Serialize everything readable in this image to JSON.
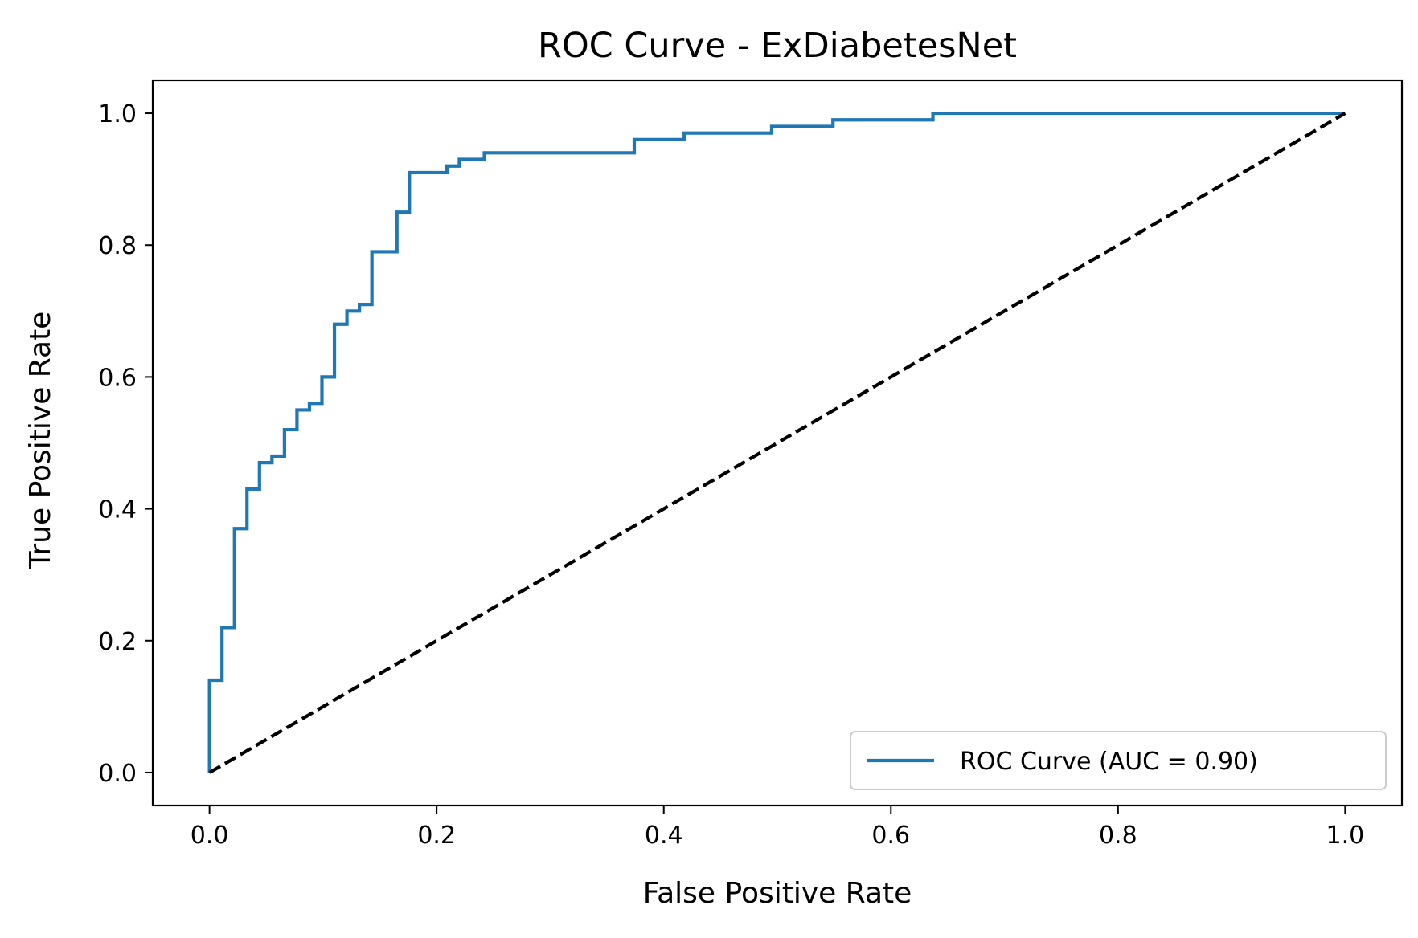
{
  "chart_data": {
    "type": "line",
    "title": "ROC Curve - ExDiabetesNet",
    "xlabel": "False Positive Rate",
    "ylabel": "True Positive Rate",
    "xlim": [
      -0.05,
      1.05
    ],
    "ylim": [
      -0.05,
      1.05
    ],
    "x_ticks": [
      0.0,
      0.2,
      0.4,
      0.6,
      0.8,
      1.0
    ],
    "x_tick_labels": [
      "0.0",
      "0.2",
      "0.4",
      "0.6",
      "0.8",
      "1.0"
    ],
    "y_ticks": [
      0.0,
      0.2,
      0.4,
      0.6,
      0.8,
      1.0
    ],
    "y_tick_labels": [
      "0.0",
      "0.2",
      "0.4",
      "0.6",
      "0.8",
      "1.0"
    ],
    "grid": false,
    "legend_position": "lower-right",
    "series": [
      {
        "name": "ROC Curve (AUC = 0.90)",
        "color": "#1f77b4",
        "style": "solid",
        "step": true,
        "x": [
          0.0,
          0.0,
          0.011,
          0.011,
          0.022,
          0.022,
          0.033,
          0.033,
          0.044,
          0.044,
          0.055,
          0.055,
          0.066,
          0.066,
          0.077,
          0.077,
          0.088,
          0.088,
          0.099,
          0.099,
          0.11,
          0.11,
          0.121,
          0.121,
          0.132,
          0.132,
          0.143,
          0.143,
          0.165,
          0.165,
          0.176,
          0.176,
          0.209,
          0.209,
          0.22,
          0.22,
          0.242,
          0.242,
          0.374,
          0.374,
          0.418,
          0.418,
          0.495,
          0.495,
          0.549,
          0.549,
          0.637,
          0.637,
          1.0
        ],
        "y": [
          0.0,
          0.14,
          0.14,
          0.22,
          0.22,
          0.37,
          0.37,
          0.43,
          0.43,
          0.47,
          0.47,
          0.48,
          0.48,
          0.52,
          0.52,
          0.55,
          0.55,
          0.56,
          0.56,
          0.6,
          0.6,
          0.68,
          0.68,
          0.7,
          0.7,
          0.71,
          0.71,
          0.79,
          0.79,
          0.85,
          0.85,
          0.91,
          0.91,
          0.92,
          0.92,
          0.93,
          0.93,
          0.94,
          0.94,
          0.96,
          0.96,
          0.97,
          0.97,
          0.98,
          0.98,
          0.99,
          0.99,
          1.0,
          1.0
        ]
      },
      {
        "name": "",
        "color": "#000000",
        "style": "dashed",
        "step": false,
        "x": [
          0.0,
          1.0
        ],
        "y": [
          0.0,
          1.0
        ]
      }
    ]
  }
}
